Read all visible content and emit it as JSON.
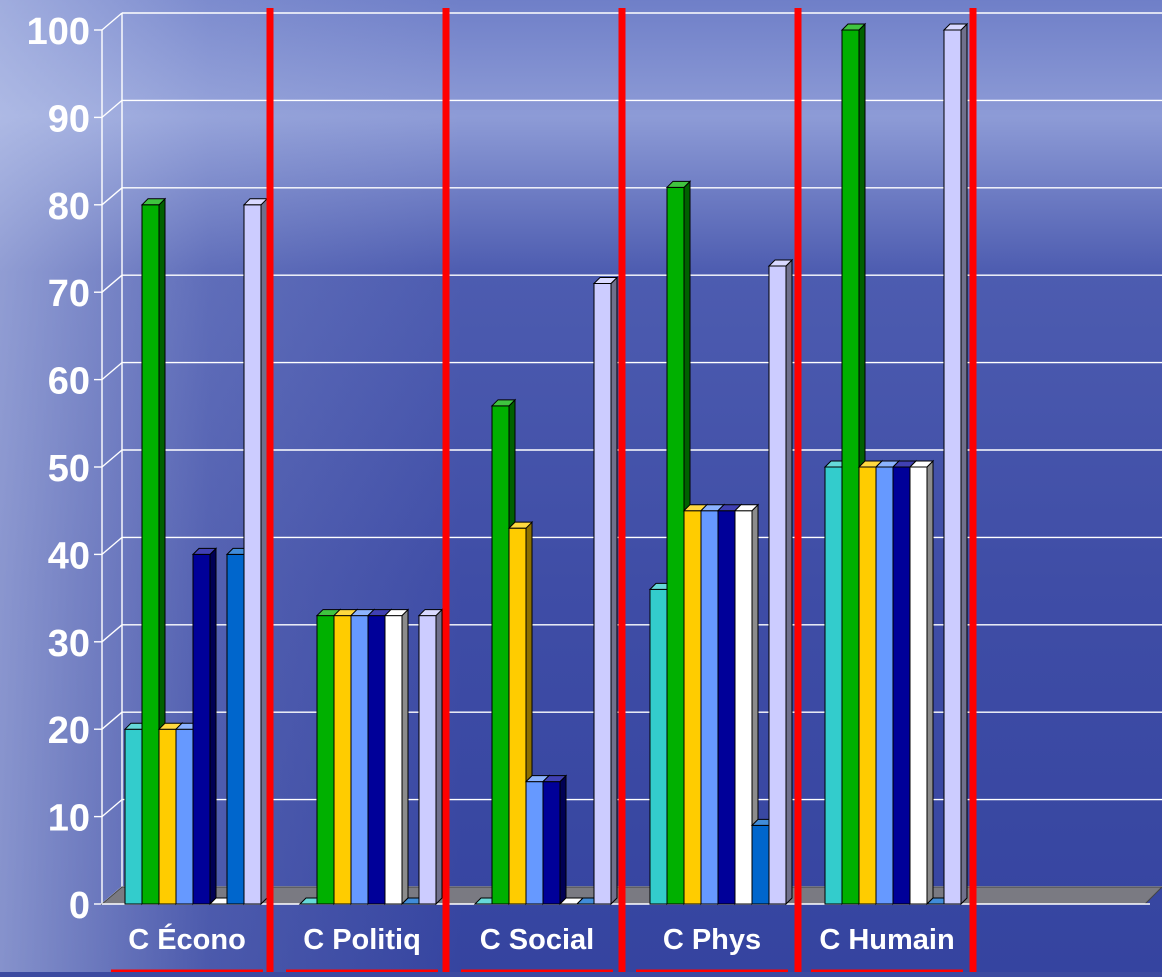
{
  "chart_data": {
    "type": "bar",
    "categories": [
      "C Écono",
      "C Politiq",
      "C Social",
      "C Phys",
      "C Humain"
    ],
    "series": [
      {
        "color": "#33cccc",
        "values": [
          20,
          0,
          0,
          36,
          50
        ]
      },
      {
        "color": "#00b000",
        "values": [
          80,
          33,
          57,
          82,
          100
        ]
      },
      {
        "color": "#ffcc00",
        "values": [
          20,
          33,
          43,
          45,
          50
        ]
      },
      {
        "color": "#6699ff",
        "values": [
          20,
          33,
          14,
          45,
          50
        ]
      },
      {
        "color": "#000099",
        "values": [
          40,
          33,
          14,
          45,
          50
        ]
      },
      {
        "color": "#ffffff",
        "values": [
          0,
          33,
          0,
          45,
          50
        ]
      },
      {
        "color": "#0066cc",
        "values": [
          40,
          0,
          0,
          9,
          0
        ]
      },
      {
        "color": "#ccccff",
        "values": [
          80,
          33,
          71,
          73,
          100
        ]
      }
    ],
    "y_ticks": [
      "0",
      "10",
      "20",
      "30",
      "40",
      "50",
      "60",
      "70",
      "80",
      "90",
      "100"
    ],
    "ylim": [
      0,
      100
    ],
    "grid": true,
    "legend": "none",
    "separator_color": "#ff0000",
    "gridline_color": "#ffffff",
    "label_color": "#ffffff"
  }
}
